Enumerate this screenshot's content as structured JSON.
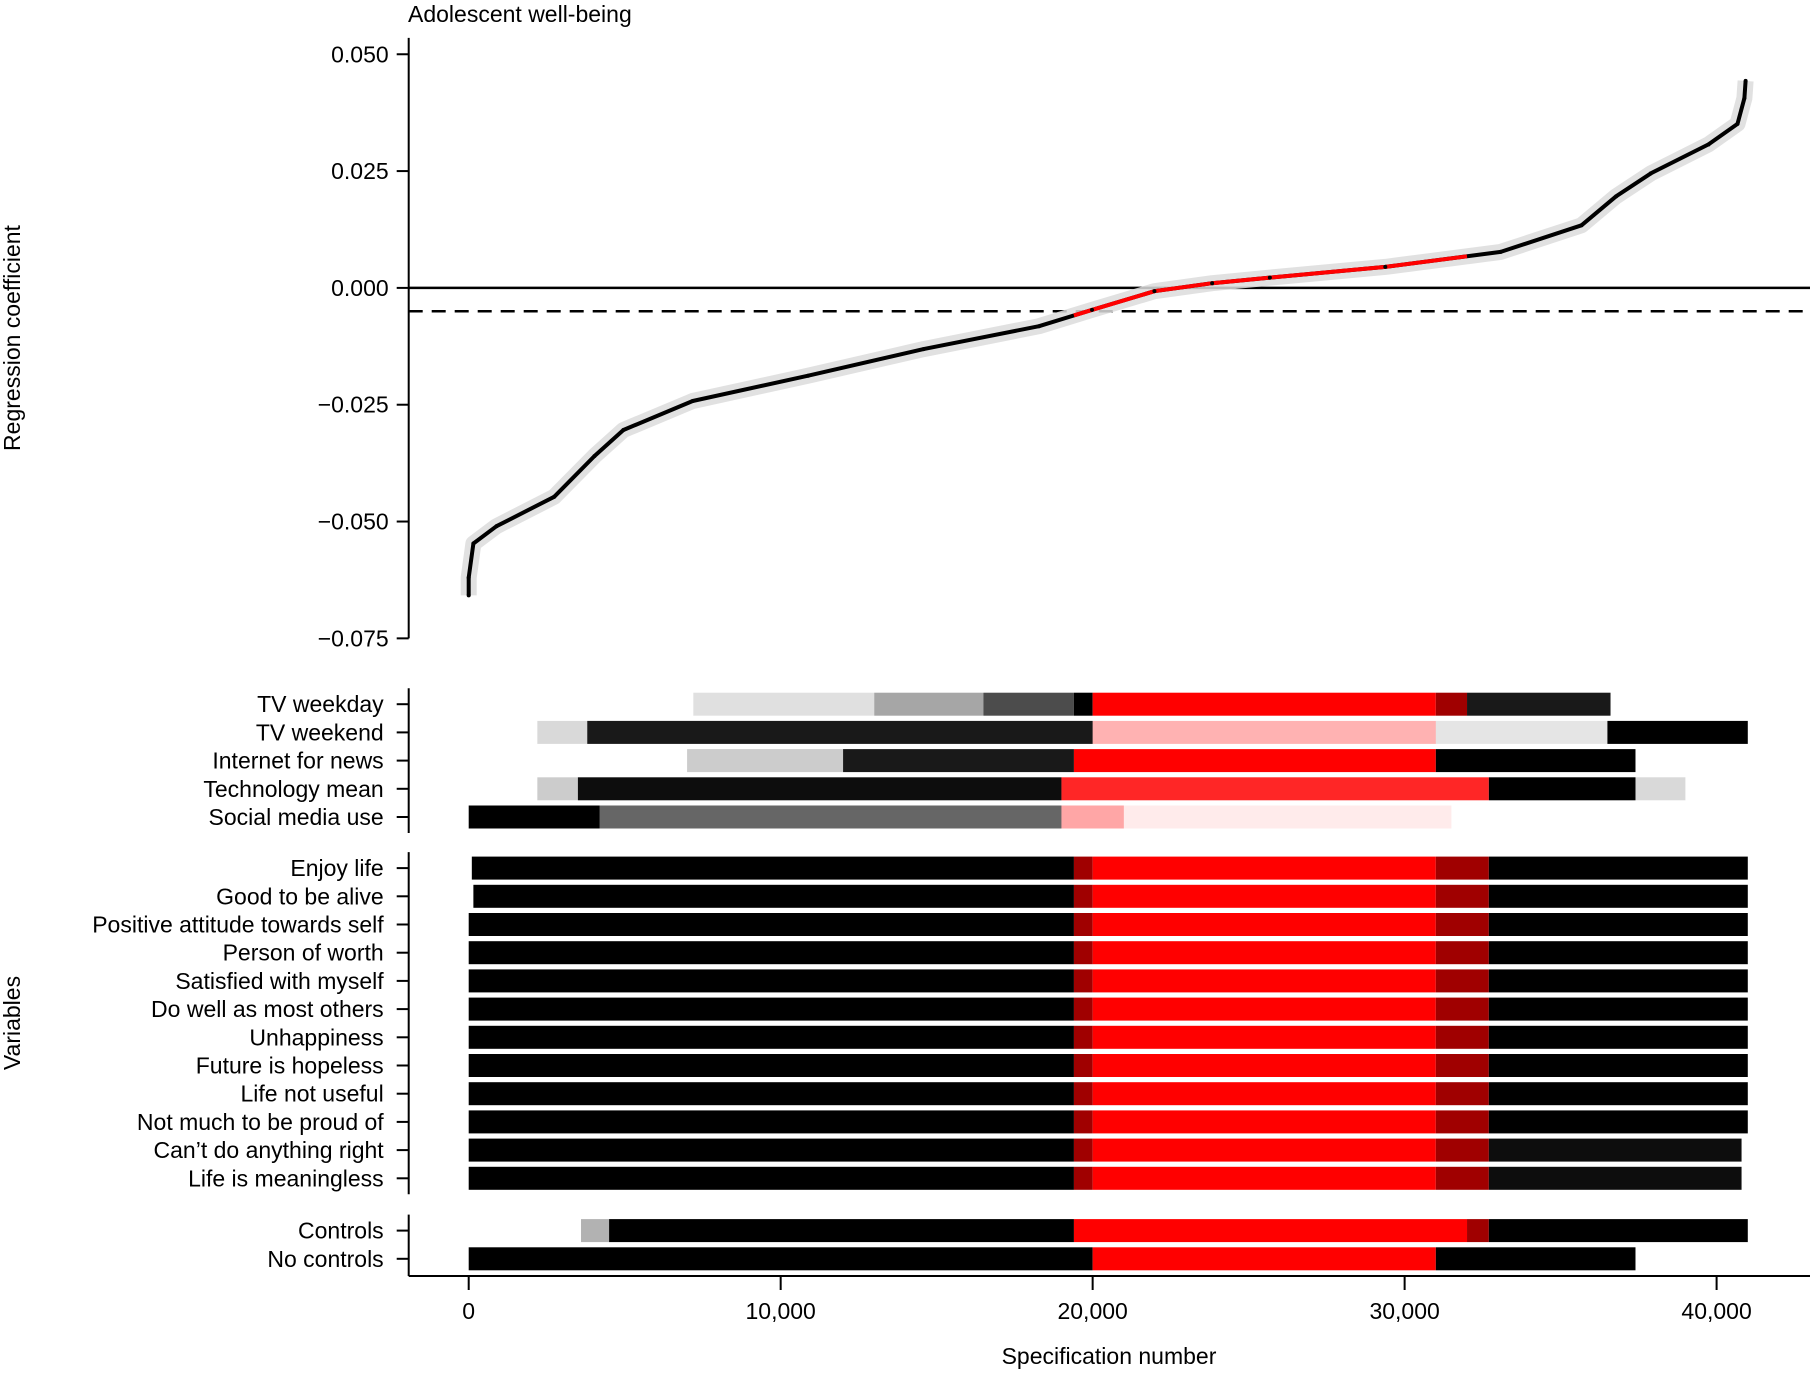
{
  "chart_data": {
    "type": "line",
    "title": "Adolescent well-being",
    "xlabel": "Specification number",
    "ylabel": "Regression coefficient",
    "ylabel_lower": "Variables",
    "xlim": [
      0,
      41000
    ],
    "ylim": [
      -0.075,
      0.05
    ],
    "x_ticks": [
      0,
      10000,
      20000,
      30000,
      40000
    ],
    "x_tick_labels": [
      "0",
      "10,000",
      "20,000",
      "30,000",
      "40,000"
    ],
    "y_ticks": [
      0.05,
      0.025,
      0,
      -0.025,
      -0.05,
      -0.075
    ],
    "y_tick_labels": [
      "0.050",
      "0.025",
      "0.000",
      "−0.025",
      "−0.050",
      "−0.075"
    ],
    "reference_lines": [
      {
        "y": 0,
        "style": "solid"
      },
      {
        "y": -0.005,
        "style": "dashed"
      }
    ],
    "significant_range": [
      19400,
      32000
    ],
    "colors": {
      "nonsig": "#ff0000",
      "sig": "#000000",
      "mixed": "#a00000",
      "ci": "#dcdcdc"
    },
    "curve": [
      [
        0,
        -0.0658
      ],
      [
        0,
        -0.062
      ],
      [
        150,
        -0.0547
      ],
      [
        890,
        -0.051
      ],
      [
        2740,
        -0.0447
      ],
      [
        4030,
        -0.036
      ],
      [
        4960,
        -0.0304
      ],
      [
        7180,
        -0.0242
      ],
      [
        10880,
        -0.0188
      ],
      [
        14580,
        -0.0131
      ],
      [
        18280,
        -0.0082
      ],
      [
        19980,
        -0.0047
      ],
      [
        21980,
        -0.0007
      ],
      [
        23830,
        0.001
      ],
      [
        25680,
        0.0022
      ],
      [
        29380,
        0.0045
      ],
      [
        33080,
        0.0077
      ],
      [
        35670,
        0.0134
      ],
      [
        36780,
        0.0196
      ],
      [
        37890,
        0.0245
      ],
      [
        39740,
        0.0307
      ],
      [
        40670,
        0.0351
      ],
      [
        40890,
        0.0406
      ],
      [
        40930,
        0.0443
      ]
    ],
    "variable_groups": [
      {
        "rows": [
          {
            "label": "TV weekday",
            "segments": [
              [
                7200,
                13000,
                "sig",
                0.12
              ],
              [
                13000,
                16500,
                "sig",
                0.35
              ],
              [
                16500,
                19400,
                "sig",
                0.7
              ],
              [
                19400,
                20000,
                "sig",
                1
              ],
              [
                20000,
                31000,
                "nonsig",
                1
              ],
              [
                31000,
                32000,
                "mixed",
                1
              ],
              [
                32000,
                36600,
                "sig",
                0.9
              ]
            ]
          },
          {
            "label": "TV weekend",
            "segments": [
              [
                2200,
                3800,
                "sig",
                0.15
              ],
              [
                3800,
                20000,
                "sig",
                0.9
              ],
              [
                20000,
                31000,
                "nonsig",
                0.3
              ],
              [
                31000,
                36500,
                "sig",
                0.1
              ],
              [
                36500,
                41000,
                "sig",
                1
              ]
            ]
          },
          {
            "label": "Internet for news",
            "segments": [
              [
                7000,
                12000,
                "sig",
                0.2
              ],
              [
                12000,
                19400,
                "sig",
                0.9
              ],
              [
                19400,
                31000,
                "nonsig",
                1
              ],
              [
                31000,
                37400,
                "sig",
                1
              ]
            ]
          },
          {
            "label": "Technology mean",
            "segments": [
              [
                2200,
                3500,
                "sig",
                0.2
              ],
              [
                3500,
                19000,
                "sig",
                0.95
              ],
              [
                19000,
                32700,
                "nonsig",
                0.85
              ],
              [
                32700,
                37400,
                "sig",
                1
              ],
              [
                37400,
                39000,
                "sig",
                0.15
              ]
            ]
          },
          {
            "label": "Social media use",
            "segments": [
              [
                0,
                4200,
                "sig",
                1
              ],
              [
                4200,
                19000,
                "sig",
                0.6
              ],
              [
                19000,
                21000,
                "nonsig",
                0.35
              ],
              [
                21000,
                31500,
                "nonsig",
                0.08
              ]
            ]
          }
        ]
      },
      {
        "rows": [
          {
            "label": "Enjoy life",
            "segments": [
              [
                100,
                19400,
                "sig",
                1
              ],
              [
                19400,
                20000,
                "mixed",
                1
              ],
              [
                20000,
                31000,
                "nonsig",
                1
              ],
              [
                31000,
                32700,
                "mixed",
                1
              ],
              [
                32700,
                41000,
                "sig",
                1
              ]
            ]
          },
          {
            "label": "Good to be alive",
            "segments": [
              [
                150,
                19400,
                "sig",
                1
              ],
              [
                19400,
                20000,
                "mixed",
                1
              ],
              [
                20000,
                31000,
                "nonsig",
                1
              ],
              [
                31000,
                32700,
                "mixed",
                1
              ],
              [
                32700,
                41000,
                "sig",
                1
              ]
            ]
          },
          {
            "label": "Positive attitude towards self",
            "segments": [
              [
                0,
                19400,
                "sig",
                1
              ],
              [
                19400,
                20000,
                "mixed",
                1
              ],
              [
                20000,
                31000,
                "nonsig",
                1
              ],
              [
                31000,
                32700,
                "mixed",
                1
              ],
              [
                32700,
                41000,
                "sig",
                1
              ]
            ]
          },
          {
            "label": "Person of worth",
            "segments": [
              [
                0,
                19400,
                "sig",
                1
              ],
              [
                19400,
                20000,
                "mixed",
                1
              ],
              [
                20000,
                31000,
                "nonsig",
                1
              ],
              [
                31000,
                32700,
                "mixed",
                1
              ],
              [
                32700,
                41000,
                "sig",
                1
              ]
            ]
          },
          {
            "label": "Satisfied with myself",
            "segments": [
              [
                0,
                19400,
                "sig",
                1
              ],
              [
                19400,
                20000,
                "mixed",
                1
              ],
              [
                20000,
                31000,
                "nonsig",
                1
              ],
              [
                31000,
                32700,
                "mixed",
                1
              ],
              [
                32700,
                41000,
                "sig",
                1
              ]
            ]
          },
          {
            "label": "Do well as most others",
            "segments": [
              [
                0,
                19400,
                "sig",
                1
              ],
              [
                19400,
                20000,
                "mixed",
                1
              ],
              [
                20000,
                31000,
                "nonsig",
                1
              ],
              [
                31000,
                32700,
                "mixed",
                1
              ],
              [
                32700,
                41000,
                "sig",
                1
              ]
            ]
          },
          {
            "label": "Unhappiness",
            "segments": [
              [
                0,
                19400,
                "sig",
                1
              ],
              [
                19400,
                20000,
                "mixed",
                1
              ],
              [
                20000,
                31000,
                "nonsig",
                1
              ],
              [
                31000,
                32700,
                "mixed",
                1
              ],
              [
                32700,
                41000,
                "sig",
                1
              ]
            ]
          },
          {
            "label": "Future is hopeless",
            "segments": [
              [
                0,
                19400,
                "sig",
                1
              ],
              [
                19400,
                20000,
                "mixed",
                1
              ],
              [
                20000,
                31000,
                "nonsig",
                1
              ],
              [
                31000,
                32700,
                "mixed",
                1
              ],
              [
                32700,
                41000,
                "sig",
                1
              ]
            ]
          },
          {
            "label": "Life not useful",
            "segments": [
              [
                0,
                19400,
                "sig",
                1
              ],
              [
                19400,
                20000,
                "mixed",
                1
              ],
              [
                20000,
                31000,
                "nonsig",
                1
              ],
              [
                31000,
                32700,
                "mixed",
                1
              ],
              [
                32700,
                41000,
                "sig",
                1
              ]
            ]
          },
          {
            "label": "Not much to be proud of",
            "segments": [
              [
                0,
                19400,
                "sig",
                1
              ],
              [
                19400,
                20000,
                "mixed",
                1
              ],
              [
                20000,
                31000,
                "nonsig",
                1
              ],
              [
                31000,
                32700,
                "mixed",
                1
              ],
              [
                32700,
                41000,
                "sig",
                1
              ]
            ]
          },
          {
            "label": "Can’t do anything right",
            "segments": [
              [
                0,
                19400,
                "sig",
                1
              ],
              [
                19400,
                20000,
                "mixed",
                1
              ],
              [
                20000,
                31000,
                "nonsig",
                1
              ],
              [
                31000,
                32700,
                "mixed",
                1
              ],
              [
                32700,
                40800,
                "sig",
                0.95
              ]
            ]
          },
          {
            "label": "Life is meaningless",
            "segments": [
              [
                0,
                19400,
                "sig",
                1
              ],
              [
                19400,
                20000,
                "mixed",
                1
              ],
              [
                20000,
                31000,
                "nonsig",
                1
              ],
              [
                31000,
                32700,
                "mixed",
                1
              ],
              [
                32700,
                40800,
                "sig",
                0.95
              ]
            ]
          }
        ]
      },
      {
        "rows": [
          {
            "label": "Controls",
            "segments": [
              [
                3600,
                4500,
                "sig",
                0.3
              ],
              [
                4500,
                19400,
                "sig",
                1
              ],
              [
                19400,
                32000,
                "nonsig",
                1
              ],
              [
                32000,
                32700,
                "mixed",
                1
              ],
              [
                32700,
                41000,
                "sig",
                1
              ]
            ]
          },
          {
            "label": "No controls",
            "segments": [
              [
                0,
                20000,
                "sig",
                1
              ],
              [
                20000,
                31000,
                "nonsig",
                1
              ],
              [
                31000,
                37400,
                "sig",
                1
              ]
            ]
          }
        ]
      }
    ]
  }
}
